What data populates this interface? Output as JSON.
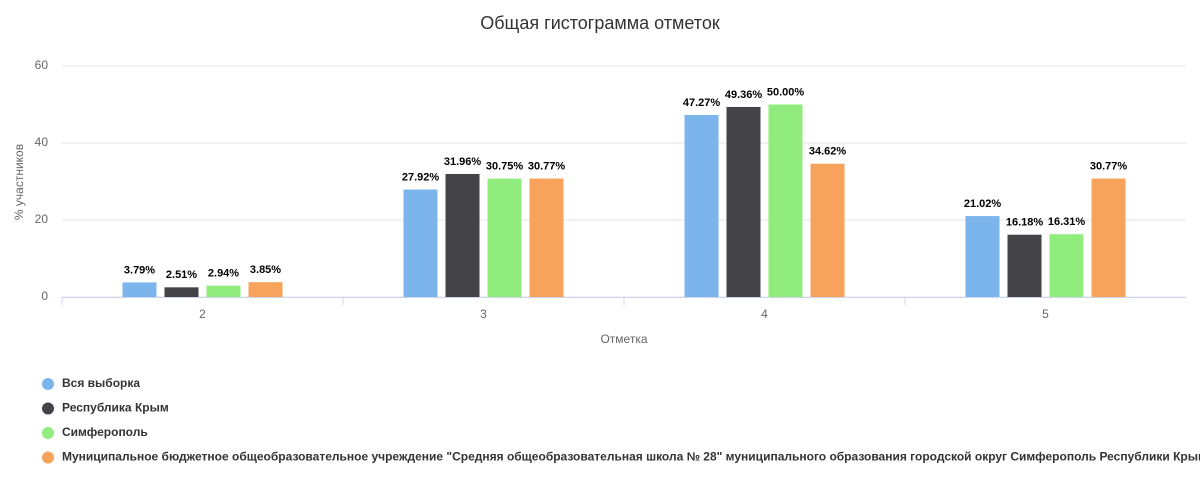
{
  "chart_data": {
    "type": "bar",
    "title": "Общая гистограмма отметок",
    "x_label": "Отметка",
    "y_label": "% участников",
    "categories": [
      "2",
      "3",
      "4",
      "5"
    ],
    "series": [
      {
        "name": "Вся выборка",
        "color": "#7cb5ec",
        "values": [
          3.79,
          27.92,
          47.27,
          21.02
        ],
        "value_labels": [
          "3.79%",
          "27.92%",
          "47.27%",
          "21.02%"
        ]
      },
      {
        "name": "Республика Крым",
        "color": "#434348",
        "values": [
          2.51,
          31.96,
          49.36,
          16.18
        ],
        "value_labels": [
          "2.51%",
          "31.96%",
          "49.36%",
          "16.18%"
        ]
      },
      {
        "name": "Симферополь",
        "color": "#90ed7d",
        "values": [
          2.94,
          30.75,
          50.0,
          16.31
        ],
        "value_labels": [
          "2.94%",
          "30.75%",
          "50.00%",
          "16.31%"
        ]
      },
      {
        "name": "Муниципальное бюджетное общеобразовательное учреждение \"Средняя общеобразовательная школа № 28\" муниципального образования городской округ Симферополь Республики Крым",
        "color": "#f7a35c",
        "values": [
          3.85,
          30.77,
          34.62,
          30.77
        ],
        "value_labels": [
          "3.85%",
          "30.77%",
          "34.62%",
          "30.77%"
        ]
      }
    ],
    "ylim": [
      0,
      60
    ],
    "yticks": [
      0,
      20,
      40,
      60
    ],
    "grid": true
  }
}
